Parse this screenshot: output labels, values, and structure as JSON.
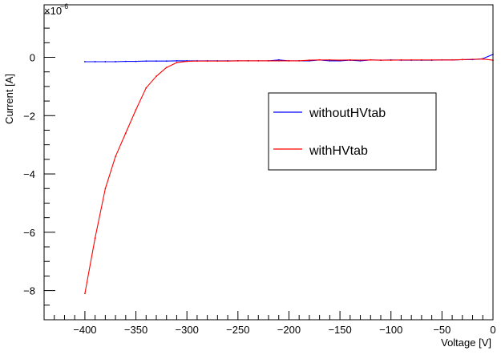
{
  "chart_data": {
    "type": "line",
    "xlabel": "Voltage [V]",
    "ylabel": "Current [A]",
    "y_exponent_base": "×10",
    "y_exponent_power": "−6",
    "xlim": [
      -440,
      0
    ],
    "ylim": [
      -9.0,
      1.8
    ],
    "x_ticks": [
      -400,
      -350,
      -300,
      -250,
      -200,
      -150,
      -100,
      -50,
      0
    ],
    "x_tick_labels": [
      "−400",
      "−350",
      "−300",
      "−250",
      "−200",
      "−150",
      "−100",
      "−50",
      "0"
    ],
    "y_ticks": [
      -8,
      -6,
      -4,
      -2,
      0
    ],
    "y_tick_labels": [
      "−8",
      "−6",
      "−4",
      "−2",
      "0"
    ],
    "grid": false,
    "legend_position": "center-right",
    "series": [
      {
        "name": "withoutHVtab",
        "color": "#0000ff",
        "x": [
          -400,
          -390,
          -380,
          -370,
          -360,
          -350,
          -340,
          -330,
          -320,
          -310,
          -300,
          -290,
          -280,
          -270,
          -260,
          -250,
          -240,
          -230,
          -220,
          -210,
          -200,
          -190,
          -180,
          -170,
          -160,
          -150,
          -140,
          -130,
          -120,
          -110,
          -100,
          -90,
          -80,
          -70,
          -60,
          -50,
          -40,
          -30,
          -20,
          -10,
          0
        ],
        "values": [
          -0.15,
          -0.15,
          -0.15,
          -0.15,
          -0.14,
          -0.14,
          -0.13,
          -0.13,
          -0.13,
          -0.12,
          -0.12,
          -0.12,
          -0.12,
          -0.12,
          -0.12,
          -0.12,
          -0.12,
          -0.12,
          -0.12,
          -0.09,
          -0.12,
          -0.12,
          -0.12,
          -0.09,
          -0.12,
          -0.12,
          -0.1,
          -0.12,
          -0.09,
          -0.1,
          -0.09,
          -0.1,
          -0.1,
          -0.1,
          -0.1,
          -0.09,
          -0.09,
          -0.08,
          -0.08,
          -0.05,
          0.1
        ]
      },
      {
        "name": "withHVtab",
        "color": "#ff0000",
        "x": [
          -400,
          -390,
          -380,
          -370,
          -360,
          -350,
          -340,
          -330,
          -320,
          -310,
          -300,
          -290,
          -280,
          -270,
          -260,
          -250,
          -240,
          -230,
          -220,
          -210,
          -200,
          -190,
          -180,
          -170,
          -160,
          -150,
          -140,
          -130,
          -120,
          -110,
          -100,
          -90,
          -80,
          -70,
          -60,
          -50,
          -40,
          -30,
          -20,
          -10,
          0
        ],
        "values": [
          -8.1,
          -6.2,
          -4.5,
          -3.4,
          -2.6,
          -1.8,
          -1.05,
          -0.65,
          -0.35,
          -0.18,
          -0.14,
          -0.13,
          -0.13,
          -0.13,
          -0.13,
          -0.12,
          -0.12,
          -0.12,
          -0.12,
          -0.12,
          -0.12,
          -0.12,
          -0.1,
          -0.09,
          -0.09,
          -0.1,
          -0.09,
          -0.1,
          -0.09,
          -0.1,
          -0.1,
          -0.09,
          -0.09,
          -0.09,
          -0.09,
          -0.09,
          -0.09,
          -0.08,
          -0.07,
          -0.06,
          -0.1
        ]
      }
    ]
  }
}
